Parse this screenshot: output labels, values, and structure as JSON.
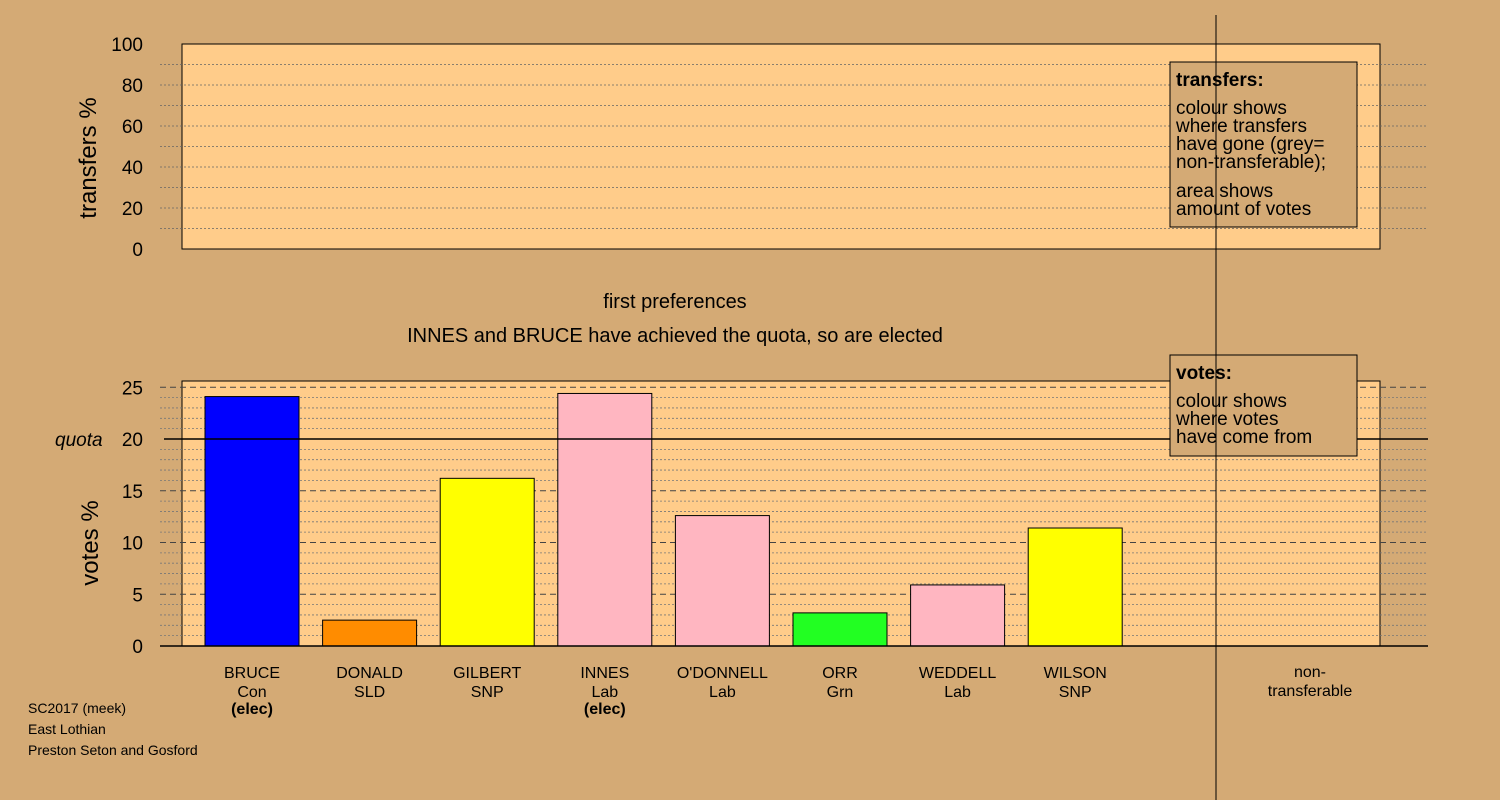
{
  "chart_data": {
    "type": "bar",
    "round_title": "first preferences",
    "status_message": "INNES and BRUCE have achieved the quota, so are elected",
    "top_panel": {
      "ylabel": "transfers %",
      "ylim": [
        0,
        100
      ],
      "ticks": [
        0,
        20,
        40,
        60,
        80,
        100
      ],
      "legend": {
        "title": "transfers:",
        "lines": [
          "colour shows",
          "where transfers",
          "have gone (grey=",
          "non-transferable);",
          "area shows",
          "amount of votes"
        ]
      }
    },
    "bottom_panel": {
      "ylabel": "votes %",
      "ylim": [
        0,
        25.5
      ],
      "ticks": [
        0,
        5,
        10,
        15,
        20,
        25
      ],
      "quota_label": "quota",
      "quota_value": 20,
      "legend": {
        "title": "votes:",
        "lines": [
          "colour shows",
          "where votes",
          "have come from"
        ]
      }
    },
    "categories": [
      "BRUCE",
      "DONALD",
      "GILBERT",
      "INNES",
      "O'DONNELL",
      "ORR",
      "WEDDELL",
      "WILSON"
    ],
    "parties": [
      "Con",
      "SLD",
      "SNP",
      "Lab",
      "Lab",
      "Grn",
      "Lab",
      "SNP"
    ],
    "elected_marks": [
      "(elec)",
      "",
      "",
      "(elec)",
      "",
      "",
      "",
      ""
    ],
    "values": [
      24.1,
      2.5,
      16.2,
      24.4,
      12.6,
      3.2,
      5.9,
      11.4
    ],
    "colors": [
      "#0000ff",
      "#ff8c00",
      "#ffff00",
      "#ffb6c1",
      "#ffb6c1",
      "#22ff22",
      "#ffb6c1",
      "#ffff00"
    ],
    "non_transferable": {
      "label_lines": [
        "non-",
        "transferable"
      ],
      "value": 0
    }
  },
  "footer": {
    "lines": [
      "SC2017 (meek)",
      "East Lothian",
      "Preston Seton and Gosford"
    ]
  },
  "colors": {
    "background": "#d4aa75",
    "plot_fill": "#ffcc8a"
  }
}
